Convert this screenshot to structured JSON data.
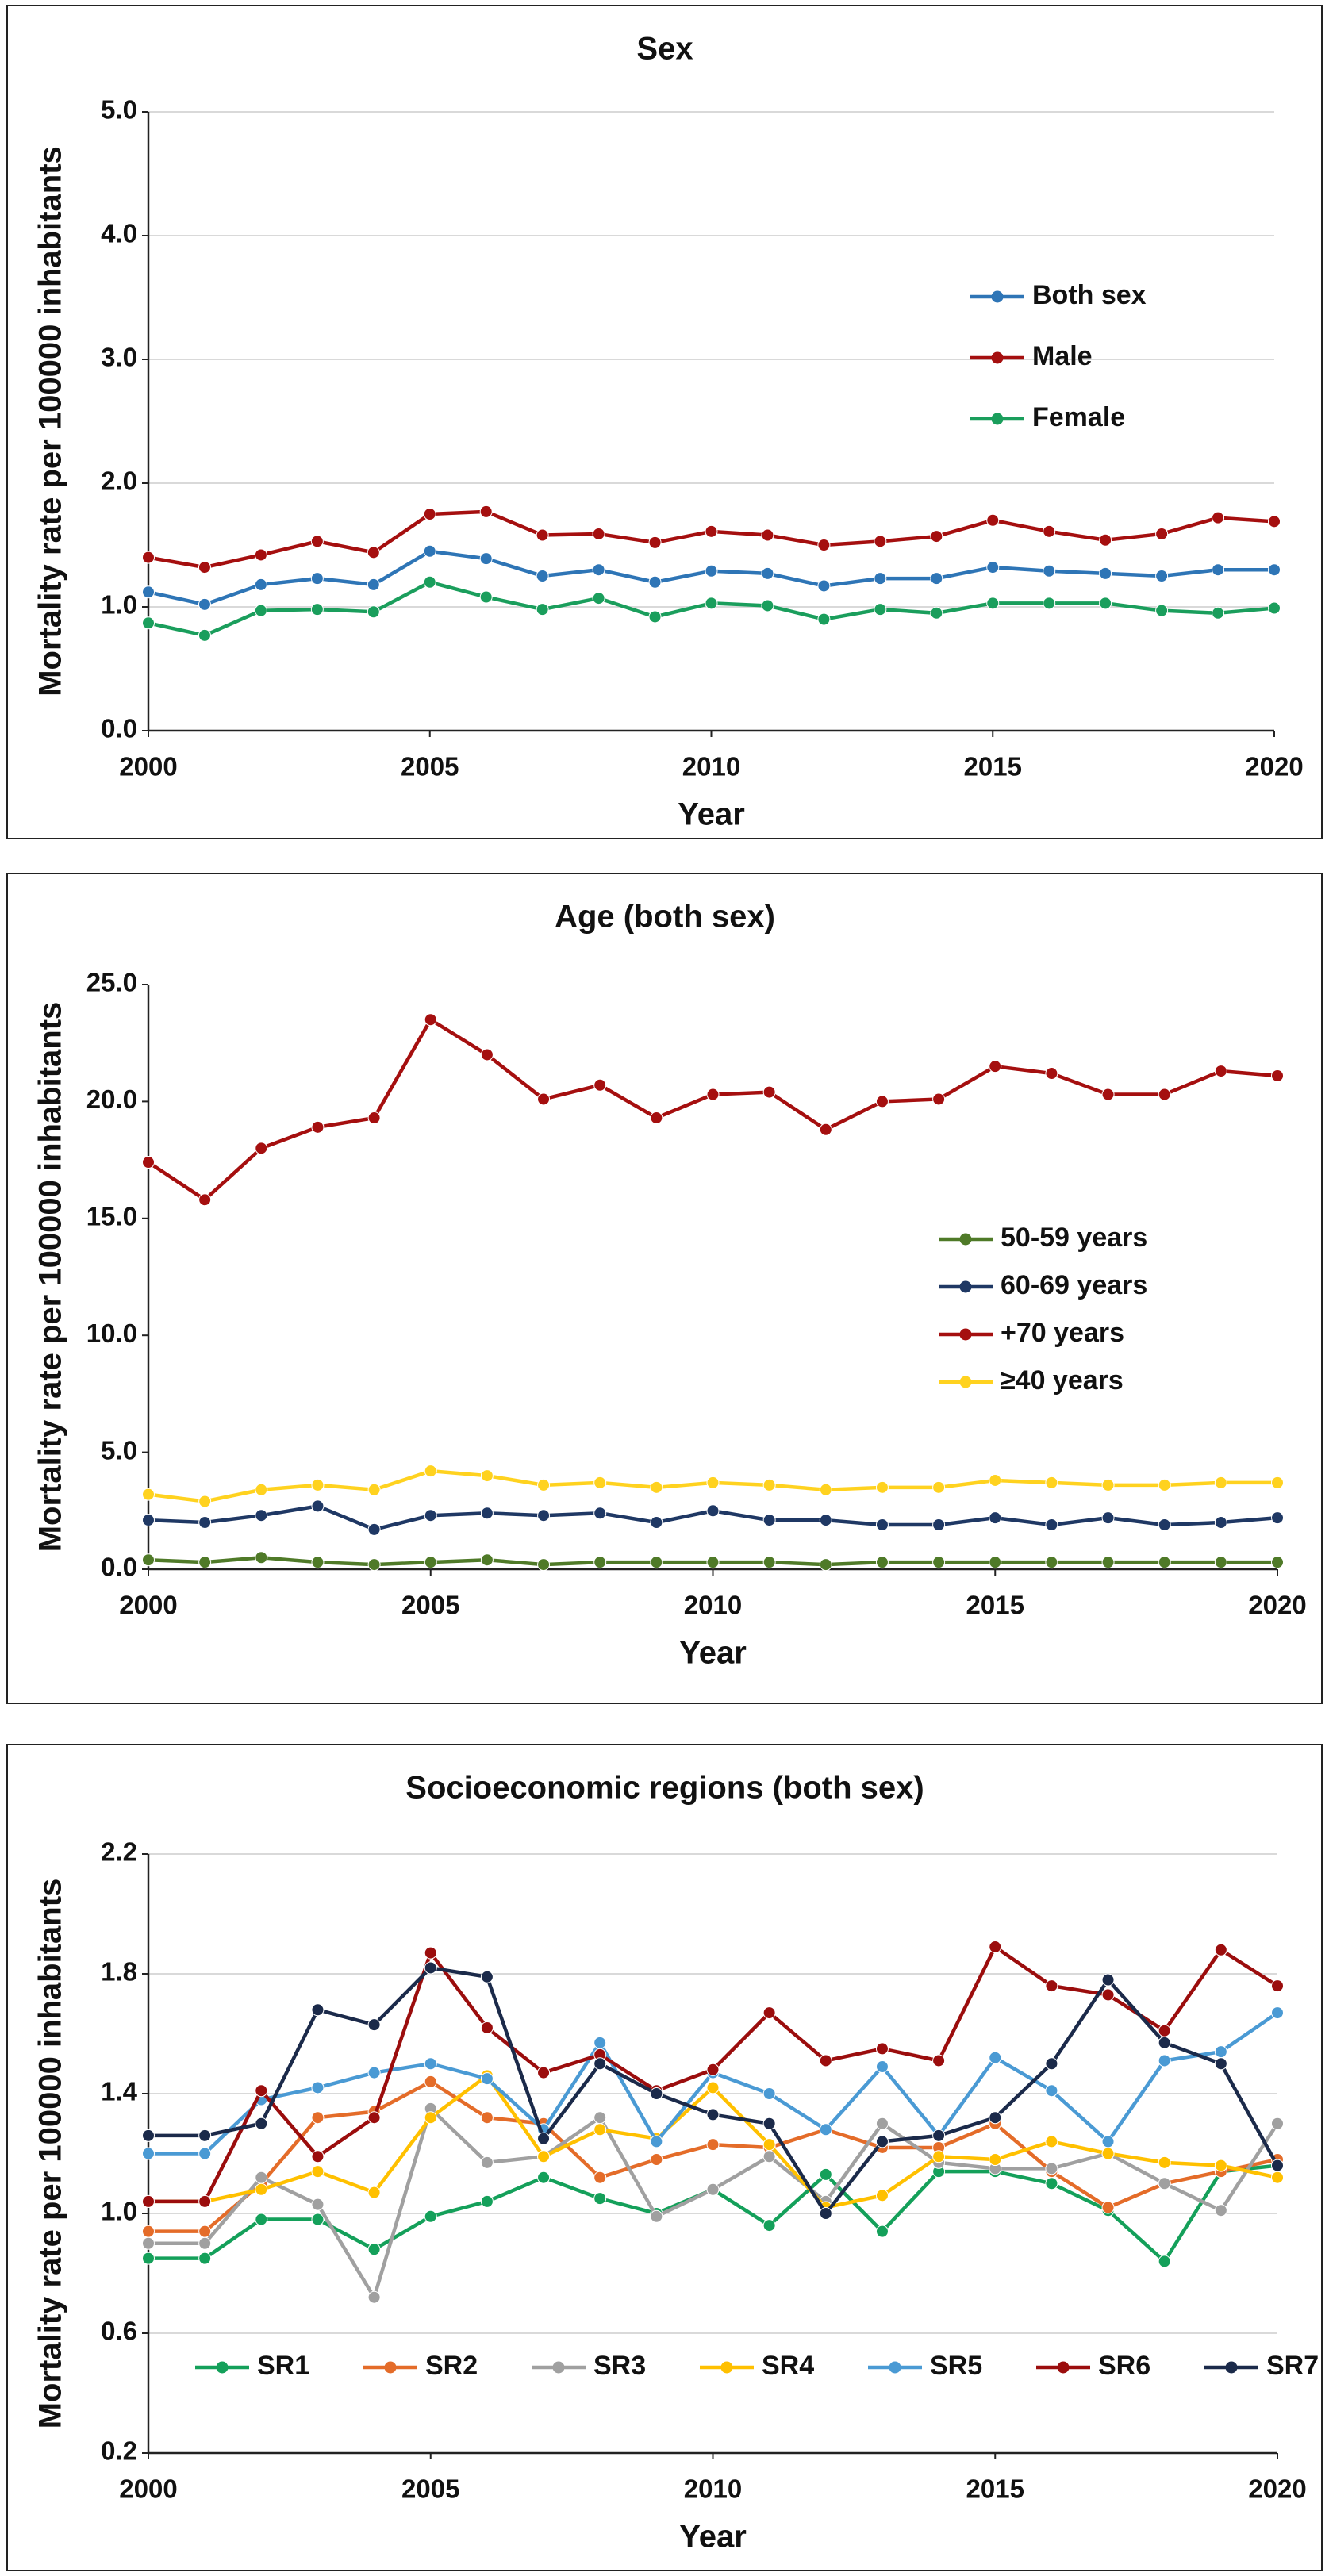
{
  "chart_data": [
    {
      "type": "line",
      "title": "Sex",
      "y_label": "Mortality rate per 100000 inhabitants",
      "x_label": "Year",
      "x": [
        2000,
        2001,
        2002,
        2003,
        2004,
        2005,
        2006,
        2007,
        2008,
        2009,
        2010,
        2011,
        2012,
        2013,
        2014,
        2015,
        2016,
        2017,
        2018,
        2019,
        2020
      ],
      "xlim": [
        2000,
        2020
      ],
      "xticks": [
        2000,
        2005,
        2010,
        2015,
        2020
      ],
      "ylim": [
        0,
        5
      ],
      "yticks": [
        {
          "value": 0,
          "label": "0.0"
        },
        {
          "value": 1,
          "label": "1.0"
        },
        {
          "value": 2,
          "label": "2.0"
        },
        {
          "value": 3,
          "label": "3.0"
        },
        {
          "value": 4,
          "label": "4.0"
        },
        {
          "value": 5,
          "label": "5.0"
        }
      ],
      "grid": true,
      "legend": "right",
      "series": [
        {
          "name": "Both sex",
          "color": "#2e75b6",
          "values": [
            1.12,
            1.02,
            1.18,
            1.23,
            1.18,
            1.45,
            1.39,
            1.25,
            1.3,
            1.2,
            1.29,
            1.27,
            1.17,
            1.23,
            1.23,
            1.32,
            1.29,
            1.27,
            1.25,
            1.3,
            1.3
          ]
        },
        {
          "name": "Male",
          "color": "#a50f0f",
          "values": [
            1.4,
            1.32,
            1.42,
            1.53,
            1.44,
            1.75,
            1.77,
            1.58,
            1.59,
            1.52,
            1.61,
            1.58,
            1.5,
            1.53,
            1.57,
            1.7,
            1.61,
            1.54,
            1.59,
            1.72,
            1.69
          ]
        },
        {
          "name": "Female",
          "color": "#1a9e5c",
          "values": [
            0.87,
            0.77,
            0.97,
            0.98,
            0.96,
            1.2,
            1.08,
            0.98,
            1.07,
            0.92,
            1.03,
            1.01,
            0.9,
            0.98,
            0.95,
            1.03,
            1.03,
            1.03,
            0.97,
            0.95,
            0.99
          ]
        }
      ]
    },
    {
      "type": "line",
      "title": "Age (both sex)",
      "y_label": "Mortality rate per 100000 inhabitants",
      "x_label": "Year",
      "x": [
        2000,
        2001,
        2002,
        2003,
        2004,
        2005,
        2006,
        2007,
        2008,
        2009,
        2010,
        2011,
        2012,
        2013,
        2014,
        2015,
        2016,
        2017,
        2018,
        2019,
        2020
      ],
      "xlim": [
        2000,
        2020
      ],
      "xticks": [
        2000,
        2005,
        2010,
        2015,
        2020
      ],
      "ylim": [
        0,
        25
      ],
      "yticks": [
        {
          "value": 0,
          "label": "0.0"
        },
        {
          "value": 5,
          "label": "5.0"
        },
        {
          "value": 10,
          "label": "10.0"
        },
        {
          "value": 15,
          "label": "15.0"
        },
        {
          "value": 20,
          "label": "20.0"
        },
        {
          "value": 25,
          "label": "25.0"
        }
      ],
      "grid": false,
      "legend": "right",
      "series": [
        {
          "name": "50-59 years",
          "color": "#4f7a28",
          "values": [
            0.4,
            0.3,
            0.5,
            0.3,
            0.2,
            0.3,
            0.4,
            0.2,
            0.3,
            0.3,
            0.3,
            0.3,
            0.2,
            0.3,
            0.3,
            0.3,
            0.3,
            0.3,
            0.3,
            0.3,
            0.3
          ]
        },
        {
          "name": "60-69 years",
          "color": "#1f3864",
          "values": [
            2.1,
            2.0,
            2.3,
            2.7,
            1.7,
            2.3,
            2.4,
            2.3,
            2.4,
            2.0,
            2.5,
            2.1,
            2.1,
            1.9,
            1.9,
            2.2,
            1.9,
            2.2,
            1.9,
            2.0,
            2.2
          ]
        },
        {
          "name": "+70 years",
          "color": "#a50f0f",
          "values": [
            17.4,
            15.8,
            18.0,
            18.9,
            19.3,
            23.5,
            22.0,
            20.1,
            20.7,
            19.3,
            20.3,
            20.4,
            18.8,
            20.0,
            20.1,
            21.5,
            21.2,
            20.3,
            20.3,
            21.3,
            21.1
          ]
        },
        {
          "name": "≥40 years",
          "color": "#ffd21f",
          "values": [
            3.2,
            2.9,
            3.4,
            3.6,
            3.4,
            4.2,
            4.0,
            3.6,
            3.7,
            3.5,
            3.7,
            3.6,
            3.4,
            3.5,
            3.5,
            3.8,
            3.7,
            3.6,
            3.6,
            3.7,
            3.7
          ]
        }
      ]
    },
    {
      "type": "line",
      "title": "Socioeconomic regions (both sex)",
      "y_label": "Mortality rate per 100000 inhabitants",
      "x_label": "Year",
      "x": [
        2000,
        2001,
        2002,
        2003,
        2004,
        2005,
        2006,
        2007,
        2008,
        2009,
        2010,
        2011,
        2012,
        2013,
        2014,
        2015,
        2016,
        2017,
        2018,
        2019,
        2020
      ],
      "xlim": [
        2000,
        2020
      ],
      "xticks": [
        2000,
        2005,
        2010,
        2015,
        2020
      ],
      "ylim": [
        0.2,
        2.2
      ],
      "yticks": [
        0.2,
        0.6,
        {
          "value": 1,
          "label": "1.0"
        },
        1.4,
        1.8,
        2.2
      ],
      "grid": true,
      "legend": "bottom",
      "series": [
        {
          "name": "SR1",
          "color": "#14a05a",
          "values": [
            0.85,
            0.85,
            0.98,
            0.98,
            0.88,
            0.99,
            1.04,
            1.12,
            1.05,
            1.0,
            1.08,
            0.96,
            1.13,
            0.94,
            1.14,
            1.14,
            1.1,
            1.01,
            0.84,
            1.14,
            1.16
          ]
        },
        {
          "name": "SR2",
          "color": "#e46c29",
          "values": [
            0.94,
            0.94,
            1.1,
            1.32,
            1.34,
            1.44,
            1.32,
            1.3,
            1.12,
            1.18,
            1.23,
            1.22,
            1.28,
            1.22,
            1.22,
            1.3,
            1.14,
            1.02,
            1.1,
            1.14,
            1.18
          ]
        },
        {
          "name": "SR3",
          "color": "#a0a0a0",
          "values": [
            0.9,
            0.9,
            1.12,
            1.03,
            0.72,
            1.35,
            1.17,
            1.19,
            1.32,
            0.99,
            1.08,
            1.19,
            1.04,
            1.3,
            1.17,
            1.15,
            1.15,
            1.2,
            1.1,
            1.01,
            1.3
          ]
        },
        {
          "name": "SR4",
          "color": "#ffc000",
          "values": [
            1.04,
            1.04,
            1.08,
            1.14,
            1.07,
            1.32,
            1.46,
            1.19,
            1.28,
            1.25,
            1.42,
            1.23,
            1.02,
            1.06,
            1.19,
            1.18,
            1.24,
            1.2,
            1.17,
            1.16,
            1.12
          ]
        },
        {
          "name": "SR5",
          "color": "#4a9ad4",
          "values": [
            1.2,
            1.2,
            1.38,
            1.42,
            1.47,
            1.5,
            1.45,
            1.28,
            1.57,
            1.24,
            1.47,
            1.4,
            1.28,
            1.49,
            1.26,
            1.52,
            1.41,
            1.24,
            1.51,
            1.54,
            1.67
          ]
        },
        {
          "name": "SR6",
          "color": "#9b0d0d",
          "values": [
            1.04,
            1.04,
            1.41,
            1.19,
            1.32,
            1.87,
            1.62,
            1.47,
            1.53,
            1.41,
            1.48,
            1.67,
            1.51,
            1.55,
            1.51,
            1.89,
            1.76,
            1.73,
            1.61,
            1.88,
            1.76
          ]
        },
        {
          "name": "SR7",
          "color": "#1b2a4a",
          "values": [
            1.26,
            1.26,
            1.3,
            1.68,
            1.63,
            1.82,
            1.79,
            1.25,
            1.5,
            1.4,
            1.33,
            1.3,
            1.0,
            1.24,
            1.26,
            1.32,
            1.5,
            1.78,
            1.57,
            1.5,
            1.16
          ]
        }
      ]
    }
  ]
}
